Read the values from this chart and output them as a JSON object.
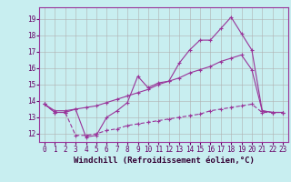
{
  "xlabel": "Windchill (Refroidissement éolien,°C)",
  "bg_color": "#c8eef0",
  "line_color": "#993399",
  "grid_color": "#b0b0b0",
  "xlim": [
    -0.5,
    23.5
  ],
  "ylim": [
    11.5,
    19.7
  ],
  "yticks": [
    12,
    13,
    14,
    15,
    16,
    17,
    18,
    19
  ],
  "xticks": [
    0,
    1,
    2,
    3,
    4,
    5,
    6,
    7,
    8,
    9,
    10,
    11,
    12,
    13,
    14,
    15,
    16,
    17,
    18,
    19,
    20,
    21,
    22,
    23
  ],
  "line1_x": [
    0,
    1,
    2,
    3,
    4,
    5,
    6,
    7,
    8,
    9,
    10,
    11,
    12,
    13,
    14,
    15,
    16,
    17,
    18,
    19,
    20,
    21,
    22,
    23
  ],
  "line1_y": [
    13.8,
    13.3,
    13.3,
    13.5,
    11.8,
    11.9,
    13.0,
    13.4,
    13.9,
    15.5,
    14.8,
    15.1,
    15.2,
    16.3,
    17.1,
    17.7,
    17.7,
    18.4,
    19.1,
    18.1,
    17.1,
    13.4,
    13.3,
    13.3
  ],
  "line2_x": [
    0,
    1,
    2,
    3,
    4,
    5,
    6,
    7,
    8,
    9,
    10,
    11,
    12,
    13,
    14,
    15,
    16,
    17,
    18,
    19,
    20,
    21,
    22,
    23
  ],
  "line2_y": [
    13.8,
    13.4,
    13.4,
    13.5,
    13.6,
    13.7,
    13.9,
    14.1,
    14.3,
    14.5,
    14.7,
    15.0,
    15.2,
    15.4,
    15.7,
    15.9,
    16.1,
    16.4,
    16.6,
    16.8,
    15.9,
    13.4,
    13.3,
    13.3
  ],
  "line3_x": [
    0,
    1,
    2,
    3,
    4,
    5,
    6,
    7,
    8,
    9,
    10,
    11,
    12,
    13,
    14,
    15,
    16,
    17,
    18,
    19,
    20,
    21,
    22,
    23
  ],
  "line3_y": [
    13.8,
    13.3,
    13.3,
    11.9,
    11.9,
    12.0,
    12.2,
    12.3,
    12.5,
    12.6,
    12.7,
    12.8,
    12.9,
    13.0,
    13.1,
    13.2,
    13.4,
    13.5,
    13.6,
    13.7,
    13.8,
    13.3,
    13.3,
    13.3
  ],
  "tick_fontsize": 5.5,
  "label_fontsize": 6.5
}
